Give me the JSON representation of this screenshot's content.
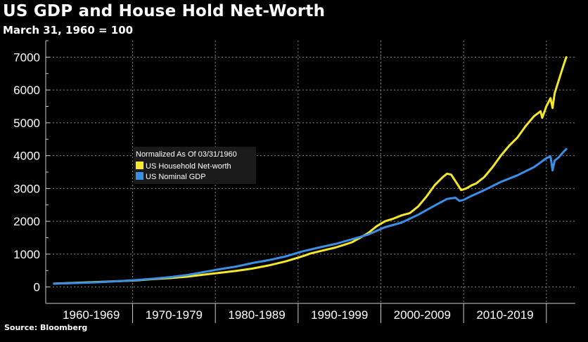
{
  "title": "US GDP and House Hold Net-Worth",
  "subtitle": "March 31, 1960 = 100",
  "source": "Source: Bloomberg",
  "chart_data": {
    "type": "line",
    "legend": {
      "title": "Normalized As Of 03/31/1960",
      "placement": "center-left"
    },
    "grid": true,
    "xlim": [
      1959.0,
      2023.0
    ],
    "ylim": [
      -500,
      7500
    ],
    "y_ticks": [
      0,
      1000,
      2000,
      3000,
      4000,
      5000,
      6000,
      7000
    ],
    "x_tick_labels": [
      "1960-1969",
      "1970-1979",
      "1980-1989",
      "1990-1999",
      "2000-2009",
      "2010-2019"
    ],
    "x_label_centers": [
      1964.5,
      1974.5,
      1984.5,
      1994.5,
      2004.5,
      2014.5
    ],
    "x_bounds": [
      1959.0,
      1969.5,
      1979.5,
      1989.5,
      1999.5,
      2009.5,
      2019.5
    ],
    "series": [
      {
        "name": "US Household Net-worth",
        "color": "#f5e72a",
        "points": [
          [
            1960.0,
            100
          ],
          [
            1962,
            120
          ],
          [
            1965,
            150
          ],
          [
            1968,
            180
          ],
          [
            1970,
            200
          ],
          [
            1972,
            240
          ],
          [
            1974,
            270
          ],
          [
            1976,
            310
          ],
          [
            1978,
            370
          ],
          [
            1980,
            430
          ],
          [
            1982,
            490
          ],
          [
            1984,
            560
          ],
          [
            1986,
            660
          ],
          [
            1988,
            780
          ],
          [
            1990,
            930
          ],
          [
            1991,
            1020
          ],
          [
            1992,
            1080
          ],
          [
            1994,
            1200
          ],
          [
            1995,
            1280
          ],
          [
            1996,
            1360
          ],
          [
            1997,
            1500
          ],
          [
            1998,
            1650
          ],
          [
            1999,
            1850
          ],
          [
            2000,
            2000
          ],
          [
            2001,
            2080
          ],
          [
            2002,
            2180
          ],
          [
            2003,
            2250
          ],
          [
            2004,
            2450
          ],
          [
            2005,
            2750
          ],
          [
            2006,
            3100
          ],
          [
            2007,
            3350
          ],
          [
            2007.5,
            3450
          ],
          [
            2008,
            3420
          ],
          [
            2008.7,
            3150
          ],
          [
            2009.2,
            2950
          ],
          [
            2009.8,
            3000
          ],
          [
            2010.5,
            3100
          ],
          [
            2011,
            3150
          ],
          [
            2012,
            3350
          ],
          [
            2013,
            3650
          ],
          [
            2014,
            4000
          ],
          [
            2015,
            4300
          ],
          [
            2016,
            4550
          ],
          [
            2017,
            4900
          ],
          [
            2018,
            5200
          ],
          [
            2018.8,
            5350
          ],
          [
            2019.0,
            5150
          ],
          [
            2019.5,
            5500
          ],
          [
            2020.0,
            5750
          ],
          [
            2020.25,
            5450
          ],
          [
            2020.5,
            5900
          ],
          [
            2021.0,
            6300
          ],
          [
            2021.5,
            6700
          ],
          [
            2021.9,
            7000
          ]
        ]
      },
      {
        "name": "US Nominal GDP",
        "color": "#3d8fe6",
        "points": [
          [
            1960.0,
            100
          ],
          [
            1962,
            115
          ],
          [
            1965,
            140
          ],
          [
            1968,
            180
          ],
          [
            1970,
            210
          ],
          [
            1972,
            250
          ],
          [
            1974,
            300
          ],
          [
            1976,
            360
          ],
          [
            1978,
            450
          ],
          [
            1980,
            540
          ],
          [
            1982,
            620
          ],
          [
            1984,
            730
          ],
          [
            1986,
            820
          ],
          [
            1988,
            930
          ],
          [
            1990,
            1080
          ],
          [
            1992,
            1200
          ],
          [
            1994,
            1310
          ],
          [
            1996,
            1450
          ],
          [
            1998,
            1600
          ],
          [
            2000,
            1820
          ],
          [
            2002,
            1960
          ],
          [
            2004,
            2200
          ],
          [
            2006,
            2480
          ],
          [
            2007.5,
            2680
          ],
          [
            2008.5,
            2720
          ],
          [
            2009.0,
            2620
          ],
          [
            2009.5,
            2650
          ],
          [
            2010.5,
            2780
          ],
          [
            2012,
            2950
          ],
          [
            2014,
            3200
          ],
          [
            2016,
            3400
          ],
          [
            2018,
            3650
          ],
          [
            2019.5,
            3920
          ],
          [
            2020.0,
            3980
          ],
          [
            2020.25,
            3550
          ],
          [
            2020.5,
            3850
          ],
          [
            2021.0,
            3950
          ],
          [
            2021.5,
            4100
          ],
          [
            2021.9,
            4200
          ]
        ]
      }
    ]
  }
}
